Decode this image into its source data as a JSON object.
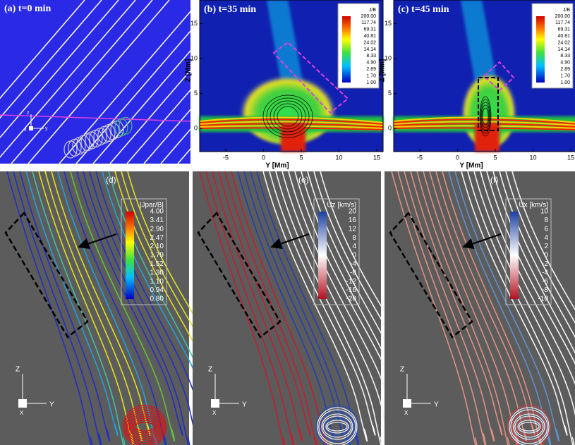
{
  "panels": {
    "a": {
      "label": "(a) t=0 min",
      "triad": [
        "z",
        "y",
        "x"
      ]
    },
    "b": {
      "label": "(b) t=35 min",
      "x_axis_label": "Y [Mm]",
      "y_axis_label": "Z [Mm]",
      "xticks": [
        "-5",
        "0",
        "5",
        "10",
        "15"
      ],
      "yticks": [
        "0",
        "5",
        "10",
        "15"
      ],
      "colorbar": {
        "title": "J/B",
        "labels": [
          "200.00",
          "117.74",
          "69.31",
          "40.81",
          "24.02",
          "14.14",
          "8.33",
          "4.90",
          "2.89",
          "1.70",
          "1.00"
        ]
      }
    },
    "c": {
      "label": "(c) t=45 min",
      "x_axis_label": "Y [Mm]",
      "y_axis_label": "Z [Mm]",
      "xticks": [
        "-5",
        "0",
        "5",
        "10",
        "15"
      ],
      "yticks": [
        "0",
        "5",
        "10",
        "15"
      ],
      "colorbar": {
        "title": "J/B",
        "labels": [
          "200.00",
          "117.74",
          "69.31",
          "40.81",
          "24.02",
          "14.14",
          "8.33",
          "4.90",
          "2.89",
          "1.70",
          "1.00"
        ]
      }
    },
    "d": {
      "label": "(d)",
      "triad": [
        "Z",
        "Y",
        "X"
      ],
      "colorbar": {
        "title": "|Jpar/B|",
        "labels": [
          "4.00",
          "3.41",
          "2.90",
          "2.47",
          "2.10",
          "1.79",
          "1.52",
          "1.30",
          "1.10",
          "0.94",
          "0.80"
        ]
      }
    },
    "e": {
      "label": "(e)",
      "triad": [
        "Z",
        "Y",
        "X"
      ],
      "colorbar": {
        "title": "Uz [km/s]",
        "labels": [
          "20",
          "16",
          "12",
          "8",
          "4",
          "0",
          "-4",
          "-8",
          "-12",
          "-16",
          "-20"
        ]
      }
    },
    "f": {
      "label": "(f)",
      "triad": [
        "Z",
        "Y",
        "X"
      ],
      "colorbar": {
        "title": "Ux [km/s]",
        "labels": [
          "10",
          "8",
          "6",
          "4",
          "2",
          "0",
          "-2",
          "-4",
          "-6",
          "-8",
          "-10"
        ]
      }
    }
  }
}
